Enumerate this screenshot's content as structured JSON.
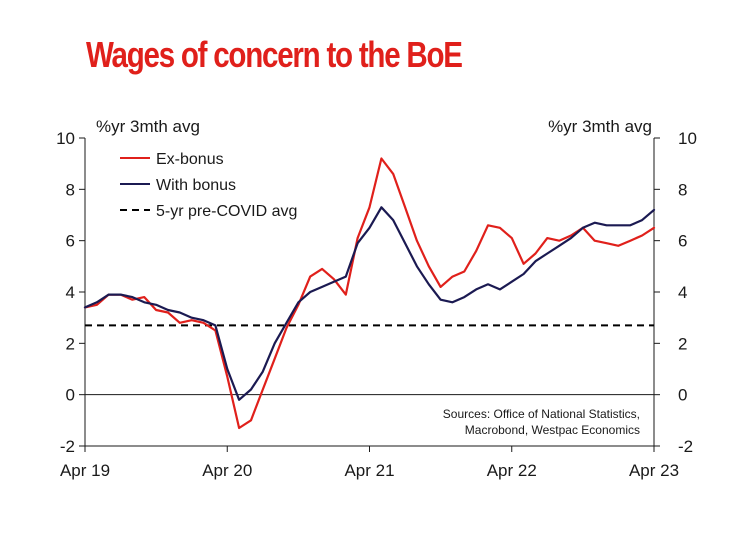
{
  "title": "Wages of concern to the BoE",
  "chart_data": {
    "type": "line",
    "title": "Wages of concern to the BoE",
    "y_unit_left": "%yr 3mth avg",
    "y_unit_right": "%yr 3mth avg",
    "ylim": [
      -2,
      10
    ],
    "yticks": [
      "-2",
      "0",
      "2",
      "4",
      "6",
      "8",
      "10"
    ],
    "xlim": [
      "2019-04",
      "2023-04"
    ],
    "xticks": [
      {
        "date": "2019-04",
        "label": "Apr 19"
      },
      {
        "date": "2020-04",
        "label": "Apr 20"
      },
      {
        "date": "2021-04",
        "label": "Apr 21"
      },
      {
        "date": "2022-04",
        "label": "Apr 22"
      },
      {
        "date": "2023-04",
        "label": "Apr 23"
      }
    ],
    "grid": false,
    "legend_position": "top-left",
    "series": [
      {
        "name": "Ex-bonus",
        "color": "#e0201b",
        "style": "solid",
        "x": [
          "2019-04",
          "2019-05",
          "2019-06",
          "2019-07",
          "2019-08",
          "2019-09",
          "2019-10",
          "2019-11",
          "2019-12",
          "2020-01",
          "2020-02",
          "2020-03",
          "2020-04",
          "2020-05",
          "2020-06",
          "2020-07",
          "2020-08",
          "2020-09",
          "2020-10",
          "2020-11",
          "2020-12",
          "2021-01",
          "2021-02",
          "2021-03",
          "2021-04",
          "2021-05",
          "2021-06",
          "2021-07",
          "2021-08",
          "2021-09",
          "2021-10",
          "2021-11",
          "2021-12",
          "2022-01",
          "2022-02",
          "2022-03",
          "2022-04",
          "2022-05",
          "2022-06",
          "2022-07",
          "2022-08",
          "2022-09",
          "2022-10",
          "2022-11",
          "2022-12",
          "2023-01",
          "2023-02",
          "2023-03",
          "2023-04"
        ],
        "values": [
          3.4,
          3.5,
          3.9,
          3.9,
          3.7,
          3.8,
          3.3,
          3.2,
          2.8,
          2.9,
          2.8,
          2.5,
          0.7,
          -1.3,
          -1.0,
          0.2,
          1.4,
          2.6,
          3.5,
          4.6,
          4.9,
          4.5,
          3.9,
          6.1,
          7.3,
          9.2,
          8.6,
          7.3,
          6.0,
          5.0,
          4.2,
          4.6,
          4.8,
          5.6,
          6.6,
          6.5,
          6.1,
          5.1,
          5.5,
          6.1,
          6.0,
          6.2,
          6.5,
          6.0,
          5.9,
          5.8,
          6.0,
          6.2,
          6.5
        ]
      },
      {
        "name": "With bonus",
        "color": "#1b1a52",
        "style": "solid",
        "x": [
          "2019-04",
          "2019-05",
          "2019-06",
          "2019-07",
          "2019-08",
          "2019-09",
          "2019-10",
          "2019-11",
          "2019-12",
          "2020-01",
          "2020-02",
          "2020-03",
          "2020-04",
          "2020-05",
          "2020-06",
          "2020-07",
          "2020-08",
          "2020-09",
          "2020-10",
          "2020-11",
          "2020-12",
          "2021-01",
          "2021-02",
          "2021-03",
          "2021-04",
          "2021-05",
          "2021-06",
          "2021-07",
          "2021-08",
          "2021-09",
          "2021-10",
          "2021-11",
          "2021-12",
          "2022-01",
          "2022-02",
          "2022-03",
          "2022-04",
          "2022-05",
          "2022-06",
          "2022-07",
          "2022-08",
          "2022-09",
          "2022-10",
          "2022-11",
          "2022-12",
          "2023-01",
          "2023-02",
          "2023-03",
          "2023-04"
        ],
        "values": [
          3.4,
          3.6,
          3.9,
          3.9,
          3.8,
          3.6,
          3.5,
          3.3,
          3.2,
          3.0,
          2.9,
          2.7,
          1.0,
          -0.2,
          0.2,
          0.9,
          2.0,
          2.8,
          3.6,
          4.0,
          4.2,
          4.4,
          4.6,
          5.9,
          6.5,
          7.3,
          6.8,
          5.9,
          5.0,
          4.3,
          3.7,
          3.6,
          3.8,
          4.1,
          4.3,
          4.1,
          4.4,
          4.7,
          5.2,
          5.5,
          5.8,
          6.1,
          6.5,
          6.7,
          6.6,
          6.6,
          6.6,
          6.8,
          7.2
        ]
      },
      {
        "name": "5-yr pre-COVID avg",
        "color": "#000000",
        "style": "dashed",
        "x": [
          "2019-04",
          "2023-04"
        ],
        "values": [
          2.7,
          2.7
        ]
      }
    ],
    "annotation": "Sources: Office of National Statistics, Macrobond, Westpac Economics",
    "annotation_lines": [
      "Sources: Office of National Statistics,",
      "Macrobond, Westpac Economics"
    ]
  }
}
